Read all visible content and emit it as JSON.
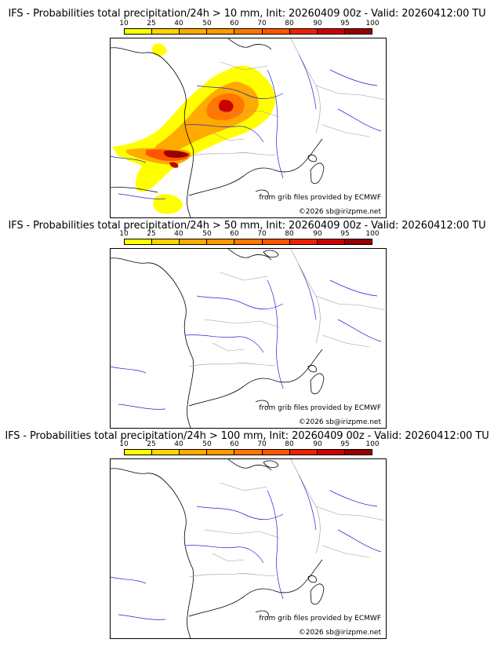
{
  "colorbar": {
    "ticks": [
      "10",
      "25",
      "40",
      "50",
      "60",
      "70",
      "80",
      "90",
      "95",
      "100"
    ],
    "colors": [
      "#ffff00",
      "#ffd400",
      "#ffaa00",
      "#ff9900",
      "#ff7700",
      "#ff5500",
      "#ee2200",
      "#cc0000",
      "#990000",
      "#660000"
    ]
  },
  "map_colors": {
    "coast": "#000000",
    "rivers": "#2222cc",
    "borders": "#999999"
  },
  "panels": [
    {
      "title": "IFS - Probabilities total precipitation/24h > 10 mm, Init: 20260409 00z - Valid: 20260412:00 TU",
      "credit_source": "from grib files provided by ECMWF",
      "credit_copyright": "©2026 sb@irizpme.net"
    },
    {
      "title": "IFS - Probabilities total precipitation/24h > 50 mm, Init: 20260409 00z - Valid: 20260412:00 TU",
      "credit_source": "from grib files provided by ECMWF",
      "credit_copyright": "©2026 sb@irizpme.net"
    },
    {
      "title": "IFS - Probabilities total precipitation/24h > 100 mm, Init: 20260409 00z - Valid: 20260412:00 TU",
      "credit_source": "from grib files provided by ECMWF",
      "credit_copyright": "©2026 sb@irizpme.net"
    }
  ]
}
